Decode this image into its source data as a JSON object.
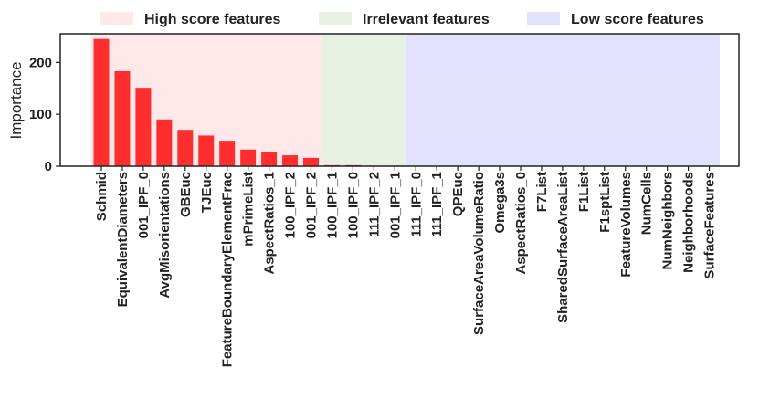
{
  "chart_data": {
    "type": "bar",
    "ylabel": "Importance",
    "xlabel": "",
    "ylim": [
      0,
      255
    ],
    "yticks": [
      0,
      100,
      200
    ],
    "grid": false,
    "legend": {
      "placement": "top",
      "entries": [
        {
          "label": "High score features",
          "color": "#ffe8ea"
        },
        {
          "label": "Irrelevant features",
          "color": "#e6f1e2"
        },
        {
          "label": "Low score features",
          "color": "#e2e2ff"
        }
      ]
    },
    "regions": [
      {
        "name": "High score features",
        "from": 0,
        "to": 10,
        "color": "#ffe8ea"
      },
      {
        "name": "Irrelevant features",
        "from": 11,
        "to": 14,
        "color": "#e6f1e2"
      },
      {
        "name": "Low score features",
        "from": 15,
        "to": 29,
        "color": "#e2e2ff"
      }
    ],
    "bar_color": "#ff2e2e",
    "categories": [
      "Schmid",
      "EquivalentDiameters",
      "001_IPF_0",
      "AvgMisorientations",
      "GBEuc",
      "TJEuc",
      "FeatureBoundaryElementFrac",
      "mPrimeList",
      "AspectRatios_1",
      "100_IPF_2",
      "001_IPF_2",
      "100_IPF_1",
      "100_IPF_0",
      "111_IPF_2",
      "001_IPF_1",
      "111_IPF_0",
      "111_IPF_1",
      "QPEuc",
      "SurfaceAreaVolumeRatio",
      "Omega3s",
      "AspectRatios_0",
      "F7List",
      "SharedSurfaceAreaList",
      "F1List",
      "F1sptList",
      "FeatureVolumes",
      "NumCells",
      "NumNeighbors",
      "Neighborhoods",
      "SurfaceFeatures"
    ],
    "values": [
      245,
      183,
      151,
      90,
      70,
      59,
      49,
      32,
      27,
      21,
      16,
      2,
      2,
      1,
      1,
      0,
      0,
      0,
      0,
      0,
      0,
      0,
      0,
      0,
      0,
      0,
      0,
      0,
      0,
      0
    ]
  }
}
